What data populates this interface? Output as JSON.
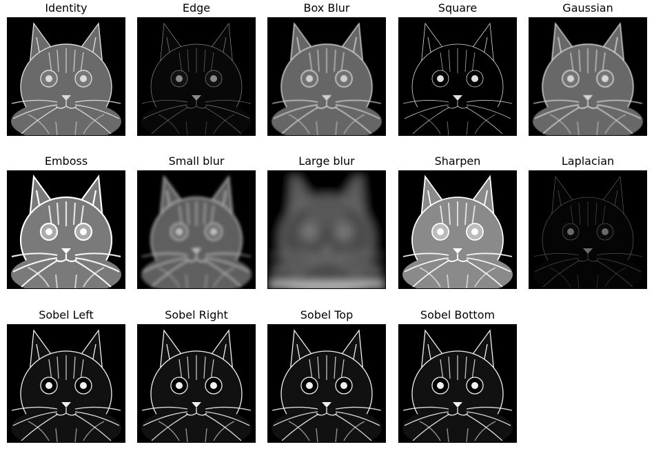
{
  "figure": {
    "panels": [
      {
        "title": "Identity",
        "filter": "identity"
      },
      {
        "title": "Edge",
        "filter": "edge"
      },
      {
        "title": "Box Blur",
        "filter": "boxblur"
      },
      {
        "title": "Square",
        "filter": "square"
      },
      {
        "title": "Gaussian",
        "filter": "gaussian"
      },
      {
        "title": "Emboss",
        "filter": "emboss"
      },
      {
        "title": "Small blur",
        "filter": "smallblur"
      },
      {
        "title": "Large blur",
        "filter": "largeblur"
      },
      {
        "title": "Sharpen",
        "filter": "sharpen"
      },
      {
        "title": "Laplacian",
        "filter": "laplacian"
      },
      {
        "title": "Sobel Left",
        "filter": "sobel"
      },
      {
        "title": "Sobel Right",
        "filter": "sobel"
      },
      {
        "title": "Sobel Top",
        "filter": "sobel"
      },
      {
        "title": "Sobel Bottom",
        "filter": "sobel"
      }
    ]
  }
}
